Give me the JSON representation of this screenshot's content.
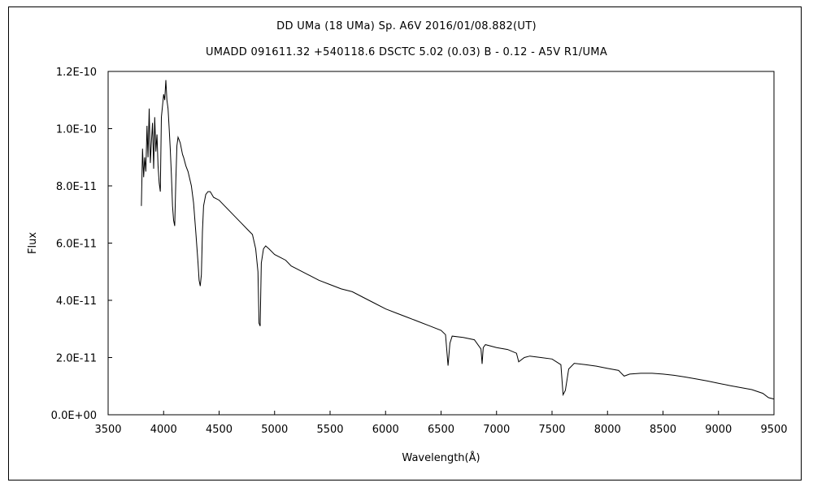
{
  "chart_data": {
    "type": "line",
    "title": "DD UMa (18 UMa)    Sp. A6V    2016/01/08.882(UT)",
    "subtitle": "UMADD 091611.32 +540118.6 DSCTC 5.02 (0.03) B - 0.12 - A5V R1/UMA",
    "xlabel": "Wavelength(Å)",
    "ylabel": "Flux",
    "xlim": [
      3500,
      9500
    ],
    "ylim": [
      0,
      1.2e-10
    ],
    "x_ticks": [
      3500,
      4000,
      4500,
      5000,
      5500,
      6000,
      6500,
      7000,
      7500,
      8000,
      8500,
      9000,
      9500
    ],
    "x_tick_labels": [
      "3500",
      "4000",
      "4500",
      "5000",
      "5500",
      "6000",
      "6500",
      "7000",
      "7500",
      "8000",
      "8500",
      "9000",
      "9500"
    ],
    "y_ticks": [
      0,
      2e-11,
      4e-11,
      6e-11,
      8e-11,
      1e-10,
      1.2e-10
    ],
    "y_tick_labels": [
      "0.0E+00",
      "2.0E-11",
      "4.0E-11",
      "6.0E-11",
      "8.0E-11",
      "1.0E-10",
      "1.2E-10"
    ],
    "grid": false,
    "legend": "none",
    "series": [
      {
        "x": [
          3800,
          3810,
          3820,
          3830,
          3840,
          3850,
          3860,
          3870,
          3880,
          3890,
          3900,
          3910,
          3920,
          3930,
          3940,
          3950,
          3960,
          3970,
          3980,
          3990,
          4000,
          4010,
          4020,
          4030,
          4040,
          4050,
          4060,
          4070,
          4080,
          4090,
          4100,
          4110,
          4120,
          4130,
          4140,
          4150,
          4160,
          4170,
          4180,
          4200,
          4220,
          4250,
          4270,
          4290,
          4310,
          4320,
          4330,
          4340,
          4350,
          4360,
          4380,
          4400,
          4420,
          4450,
          4500,
          4550,
          4600,
          4650,
          4700,
          4750,
          4800,
          4830,
          4850,
          4860,
          4870,
          4880,
          4900,
          4920,
          4950,
          5000,
          5050,
          5100,
          5150,
          5200,
          5300,
          5400,
          5500,
          5600,
          5700,
          5800,
          5900,
          6000,
          6100,
          6200,
          6300,
          6400,
          6500,
          6540,
          6563,
          6580,
          6600,
          6700,
          6800,
          6860,
          6870,
          6880,
          6900,
          7000,
          7100,
          7180,
          7200,
          7250,
          7300,
          7400,
          7500,
          7580,
          7600,
          7620,
          7650,
          7700,
          7800,
          7900,
          8000,
          8100,
          8150,
          8200,
          8300,
          8400,
          8500,
          8600,
          8700,
          8800,
          8900,
          9000,
          9100,
          9200,
          9300,
          9400,
          9450,
          9500
        ],
        "y": [
          7.3e-11,
          9.3e-11,
          8.3e-11,
          9e-11,
          8.5e-11,
          1.01e-10,
          9e-11,
          1.07e-10,
          8.8e-11,
          9.5e-11,
          1.02e-10,
          8.6e-11,
          1.04e-10,
          9.2e-11,
          9.8e-11,
          8.7e-11,
          8.1e-11,
          7.8e-11,
          1.04e-10,
          1.08e-10,
          1.12e-10,
          1.1e-10,
          1.17e-10,
          1.1e-10,
          1.07e-10,
          1e-10,
          9.3e-11,
          8.4e-11,
          7.3e-11,
          6.8e-11,
          6.6e-11,
          8.2e-11,
          9.4e-11,
          9.7e-11,
          9.6e-11,
          9.5e-11,
          9.3e-11,
          9.1e-11,
          9e-11,
          8.7e-11,
          8.5e-11,
          8e-11,
          7.4e-11,
          6.4e-11,
          5.3e-11,
          4.7e-11,
          4.5e-11,
          4.9e-11,
          6.4e-11,
          7.3e-11,
          7.7e-11,
          7.8e-11,
          7.8e-11,
          7.6e-11,
          7.5e-11,
          7.3e-11,
          7.1e-11,
          6.9e-11,
          6.7e-11,
          6.5e-11,
          6.3e-11,
          5.8e-11,
          5e-11,
          3.2e-11,
          3.1e-11,
          5.3e-11,
          5.8e-11,
          5.9e-11,
          5.8e-11,
          5.6e-11,
          5.5e-11,
          5.4e-11,
          5.2e-11,
          5.1e-11,
          4.9e-11,
          4.7e-11,
          4.55e-11,
          4.4e-11,
          4.3e-11,
          4.1e-11,
          3.9e-11,
          3.7e-11,
          3.55e-11,
          3.4e-11,
          3.25e-11,
          3.1e-11,
          2.95e-11,
          2.8e-11,
          1.72e-11,
          2.5e-11,
          2.75e-11,
          2.7e-11,
          2.62e-11,
          2.3e-11,
          1.78e-11,
          2.35e-11,
          2.45e-11,
          2.35e-11,
          2.28e-11,
          2.15e-11,
          1.85e-11,
          2e-11,
          2.05e-11,
          2e-11,
          1.95e-11,
          1.75e-11,
          7e-12,
          8.5e-12,
          1.6e-11,
          1.8e-11,
          1.75e-11,
          1.7e-11,
          1.62e-11,
          1.55e-11,
          1.35e-11,
          1.42e-11,
          1.45e-11,
          1.45e-11,
          1.42e-11,
          1.38e-11,
          1.32e-11,
          1.25e-11,
          1.18e-11,
          1.1e-11,
          1.02e-11,
          9.5e-12,
          8.8e-12,
          7.5e-12,
          6e-12,
          5.5e-12
        ]
      }
    ]
  }
}
